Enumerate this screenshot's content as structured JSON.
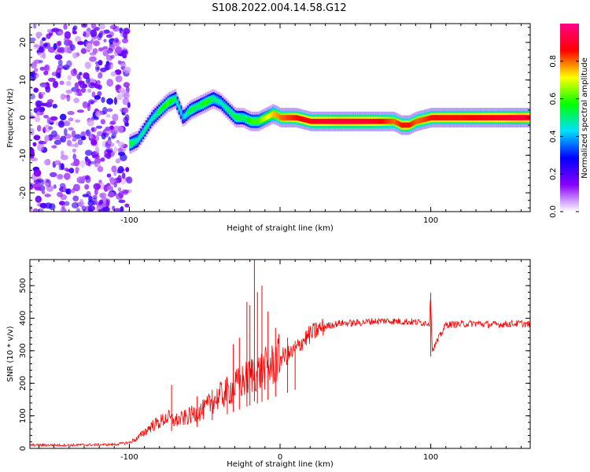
{
  "title": "S108.2022.004.14.58.G12",
  "chart_data": [
    {
      "type": "heatmap",
      "xlabel": "Height of straight line (km)",
      "ylabel": "Frequency (Hz)",
      "xlim": [
        -166,
        166
      ],
      "ylim": [
        -25,
        25
      ],
      "xticks": [
        -100,
        0,
        100
      ],
      "xtick_labels": [
        "-100",
        "",
        "100"
      ],
      "yticks": [
        -20,
        -10,
        0,
        10,
        20
      ],
      "ytick_labels": [
        "-20",
        "-10",
        "0",
        "10",
        "20"
      ],
      "colorbar": {
        "label": "Normalized spectral amplitude",
        "range": [
          0,
          1
        ],
        "ticks": [
          0.0,
          0.2,
          0.4,
          0.6,
          0.8
        ],
        "tick_labels": [
          "0.0",
          "0.2",
          "0.4",
          "0.6",
          "0.8"
        ],
        "colors": [
          "#ffffff",
          "#8800ff",
          "#0000ff",
          "#00e0ff",
          "#00ff00",
          "#ffff00",
          "#ff0000",
          "#ff0088"
        ]
      },
      "ridge": {
        "x": [
          -100,
          -95,
          -90,
          -85,
          -80,
          -75,
          -70,
          -65,
          -60,
          -55,
          -50,
          -45,
          -40,
          -35,
          -30,
          -25,
          -20,
          -15,
          -10,
          -5,
          0,
          10,
          20,
          40,
          60,
          75,
          80,
          85,
          90,
          100,
          120,
          140,
          160,
          166
        ],
        "frequency": [
          -7,
          -6,
          -3,
          0,
          2,
          4,
          5,
          0,
          2,
          3,
          4,
          5,
          4,
          2,
          0,
          0,
          -1,
          -1,
          0,
          1,
          0,
          0,
          -1,
          -1,
          -1,
          -1,
          -2,
          -2,
          -1,
          0,
          0,
          0,
          0,
          0
        ],
        "amplitude": [
          0.55,
          0.45,
          0.5,
          0.45,
          0.55,
          0.6,
          0.5,
          0.4,
          0.55,
          0.5,
          0.6,
          0.5,
          0.45,
          0.5,
          0.55,
          0.5,
          0.6,
          0.6,
          0.7,
          0.75,
          0.8,
          0.85,
          0.88,
          0.92,
          0.9,
          0.8,
          0.85,
          0.85,
          0.8,
          0.85,
          0.85,
          0.88,
          0.92,
          0.9
        ]
      },
      "noise_region": {
        "x": [
          -166,
          -100
        ],
        "amplitude_range": [
          0.05,
          0.25
        ]
      }
    },
    {
      "type": "line",
      "xlabel": "Height of straight line (km)",
      "ylabel": "SNR (10 * v/v)",
      "xlim": [
        -166,
        166
      ],
      "ylim": [
        0,
        580
      ],
      "xticks": [
        -100,
        0,
        100
      ],
      "xtick_labels": [
        "-100",
        "0",
        "100"
      ],
      "yticks": [
        0,
        100,
        200,
        300,
        400,
        500
      ],
      "ytick_labels": [
        "0",
        "100",
        "200",
        "300",
        "400",
        "500"
      ],
      "color": "#ff0000",
      "x": [
        -166,
        -140,
        -110,
        -100,
        -95,
        -90,
        -85,
        -80,
        -75,
        -70,
        -65,
        -60,
        -55,
        -50,
        -45,
        -40,
        -35,
        -30,
        -25,
        -20,
        -17,
        -15,
        -10,
        -5,
        0,
        5,
        10,
        15,
        20,
        25,
        30,
        40,
        50,
        60,
        70,
        80,
        90,
        99,
        100,
        101,
        110,
        120,
        130,
        140,
        150,
        160,
        166
      ],
      "y": [
        10,
        10,
        12,
        18,
        30,
        50,
        70,
        80,
        95,
        85,
        90,
        100,
        110,
        120,
        145,
        160,
        175,
        190,
        205,
        220,
        240,
        230,
        245,
        255,
        280,
        285,
        300,
        330,
        350,
        365,
        375,
        385,
        385,
        390,
        392,
        390,
        388,
        385,
        470,
        300,
        380,
        382,
        384,
        380,
        382,
        384,
        380
      ],
      "spikes": {
        "x": [
          -72,
          -55,
          -45,
          -35,
          -31,
          -27,
          -22,
          -20,
          -17,
          -15,
          -12,
          -8,
          -3,
          5,
          10,
          100
        ],
        "y": [
          195,
          160,
          180,
          210,
          320,
          340,
          450,
          440,
          580,
          480,
          500,
          420,
          370,
          340,
          330,
          478
        ]
      }
    }
  ]
}
